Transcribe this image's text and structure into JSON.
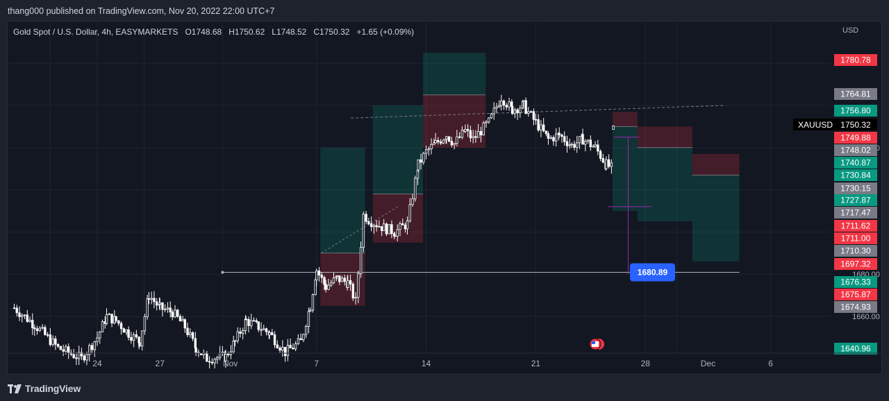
{
  "header": {
    "published": "thang000 published on TradingView.com, Nov 20, 2022 22:00 UTC+7"
  },
  "symbol": {
    "name": "Gold Spot / U.S. Dollar, 4h, EASYMARKETS",
    "o_key": "O",
    "o_val": "1748.68",
    "h_key": "H",
    "h_val": "1750.62",
    "l_key": "L",
    "l_val": "1748.52",
    "c_key": "C",
    "c_val": "1750.32",
    "change": "+1.65 (+0.09%)"
  },
  "currency": "USD",
  "footer": {
    "brand": "TradingView"
  },
  "colors": {
    "background": "#131722",
    "candle": "#ffffff",
    "red_label": "#f23645",
    "green_label": "#089981",
    "grey_label": "#787b86",
    "blue_label": "#2962ff",
    "purple": "#9c27b0"
  },
  "chart_data": {
    "type": "candlestick",
    "symbol_tag": "XAUUSD",
    "last_price": "1750.32",
    "y_ticks": [
      "1740.00",
      "1680.00",
      "1660.00"
    ],
    "x_ticks": [
      "24",
      "27",
      "Nov",
      "7",
      "14",
      "21",
      "28",
      "Dec",
      "6"
    ],
    "price_labels": [
      {
        "text": "1780.78",
        "color": "red"
      },
      {
        "text": "1764.81",
        "color": "grey"
      },
      {
        "text": "1756.80",
        "color": "green"
      },
      {
        "text": "1749.88",
        "color": "red"
      },
      {
        "text": "1748.02",
        "color": "grey"
      },
      {
        "text": "1740.87",
        "color": "green"
      },
      {
        "text": "1730.84",
        "color": "green"
      },
      {
        "text": "1730.15",
        "color": "grey"
      },
      {
        "text": "1727.87",
        "color": "green"
      },
      {
        "text": "1717.47",
        "color": "grey"
      },
      {
        "text": "1711.62",
        "color": "red"
      },
      {
        "text": "1711.00",
        "color": "red"
      },
      {
        "text": "1710.30",
        "color": "grey"
      },
      {
        "text": "1697.32",
        "color": "red"
      },
      {
        "text": "1676.33",
        "color": "green"
      },
      {
        "text": "1675.87",
        "color": "red"
      },
      {
        "text": "1674.93",
        "color": "grey"
      },
      {
        "text": "1640.96",
        "color": "green"
      }
    ],
    "horizontal_line": {
      "price": "1680.89"
    },
    "positions": [
      {
        "entry": 1690,
        "target": 1740,
        "stop": 1665,
        "side": "long"
      },
      {
        "entry": 1718,
        "target": 1760,
        "stop": 1695,
        "side": "long"
      },
      {
        "entry": 1765,
        "target": 1785,
        "stop": 1740,
        "side": "long"
      },
      {
        "entry": 1750,
        "target": 1710,
        "stop": 1757,
        "side": "short"
      },
      {
        "entry": 1740,
        "target": 1705,
        "stop": 1750,
        "side": "short"
      },
      {
        "entry": 1727,
        "target": 1686,
        "stop": 1737,
        "side": "short"
      }
    ]
  }
}
